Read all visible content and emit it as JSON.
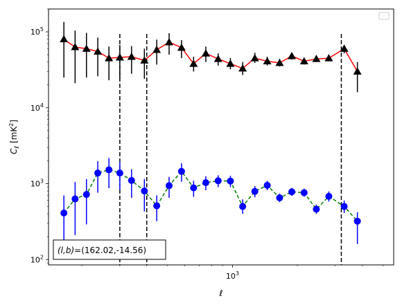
{
  "chart_data": {
    "type": "line",
    "title": "",
    "xlabel": "ℓ",
    "ylabel": "C_ℓ [mK²]",
    "xscale": "log",
    "yscale": "log",
    "xlim": [
      140,
      5600
    ],
    "ylim": [
      85,
      200000
    ],
    "x_tick_labels": [
      {
        "value": 1000,
        "label": "10^3"
      }
    ],
    "y_tick_labels": [
      {
        "value": 100,
        "label": "10^2"
      },
      {
        "value": 1000,
        "label": "10^3"
      },
      {
        "value": 10000,
        "label": "10^4"
      },
      {
        "value": 100000,
        "label": "10^5"
      }
    ],
    "grid": false,
    "legend": {
      "placement": "top-right",
      "entries": []
    },
    "annotation": "(l,b)=(162.02,-14.56)",
    "vlines": [
      300,
      400,
      3200
    ],
    "series": [
      {
        "color": "#ff0000",
        "marker": "triangle",
        "marker_color": "#000000",
        "linestyle": "solid",
        "points": [
          {
            "x": 165,
            "y": 80000,
            "ylo": 25000,
            "yhi": 135000
          },
          {
            "x": 186,
            "y": 63000,
            "ylo": 21000,
            "yhi": 104000
          },
          {
            "x": 210,
            "y": 60000,
            "ylo": 25000,
            "yhi": 97000
          },
          {
            "x": 237,
            "y": 55000,
            "ylo": 26000,
            "yhi": 84000
          },
          {
            "x": 267,
            "y": 45000,
            "ylo": 23000,
            "yhi": 64000
          },
          {
            "x": 300,
            "y": 46000,
            "ylo": 24000,
            "yhi": 67000
          },
          {
            "x": 340,
            "y": 47000,
            "ylo": 28000,
            "yhi": 65000
          },
          {
            "x": 390,
            "y": 42000,
            "ylo": 24000,
            "yhi": 60000
          },
          {
            "x": 445,
            "y": 58000,
            "ylo": 37000,
            "yhi": 79000
          },
          {
            "x": 508,
            "y": 73000,
            "ylo": 50000,
            "yhi": 96000
          },
          {
            "x": 580,
            "y": 62000,
            "ylo": 45000,
            "yhi": 78000
          },
          {
            "x": 660,
            "y": 38000,
            "ylo": 30000,
            "yhi": 47000
          },
          {
            "x": 752,
            "y": 52000,
            "ylo": 40000,
            "yhi": 64000
          },
          {
            "x": 858,
            "y": 44000,
            "ylo": 36000,
            "yhi": 52000
          },
          {
            "x": 978,
            "y": 38000,
            "ylo": 32000,
            "yhi": 45000
          },
          {
            "x": 1115,
            "y": 33000,
            "ylo": 27000,
            "yhi": 40000
          },
          {
            "x": 1270,
            "y": 45000,
            "ylo": 39000,
            "yhi": 53000
          },
          {
            "x": 1450,
            "y": 41000,
            "ylo": 36000,
            "yhi": 47000
          },
          {
            "x": 1655,
            "y": 39000,
            "ylo": 35000,
            "yhi": 44000
          },
          {
            "x": 1885,
            "y": 48000,
            "ylo": 43000,
            "yhi": 53000
          },
          {
            "x": 2150,
            "y": 41000,
            "ylo": 37000,
            "yhi": 45000
          },
          {
            "x": 2450,
            "y": 44000,
            "ylo": 40000,
            "yhi": 48000
          },
          {
            "x": 2800,
            "y": 45000,
            "ylo": 41000,
            "yhi": 50000
          },
          {
            "x": 3300,
            "y": 60000,
            "ylo": 52000,
            "yhi": 67000
          },
          {
            "x": 3800,
            "y": 30000,
            "ylo": 16000,
            "yhi": 40000
          }
        ]
      },
      {
        "color": "#008000",
        "marker": "circle",
        "marker_color": "#0000ff",
        "linestyle": "dashed",
        "points": [
          {
            "x": 165,
            "y": 410,
            "ylo": 160,
            "yhi": 700
          },
          {
            "x": 186,
            "y": 630,
            "ylo": 210,
            "yhi": 1050
          },
          {
            "x": 210,
            "y": 720,
            "ylo": 290,
            "yhi": 1150
          },
          {
            "x": 237,
            "y": 1380,
            "ylo": 760,
            "yhi": 1980
          },
          {
            "x": 267,
            "y": 1520,
            "ylo": 870,
            "yhi": 2180
          },
          {
            "x": 300,
            "y": 1380,
            "ylo": 820,
            "yhi": 1950
          },
          {
            "x": 340,
            "y": 1100,
            "ylo": 650,
            "yhi": 1550
          },
          {
            "x": 390,
            "y": 800,
            "ylo": 430,
            "yhi": 1150
          },
          {
            "x": 445,
            "y": 510,
            "ylo": 320,
            "yhi": 700
          },
          {
            "x": 508,
            "y": 940,
            "ylo": 650,
            "yhi": 1230
          },
          {
            "x": 580,
            "y": 1450,
            "ylo": 1060,
            "yhi": 1850
          },
          {
            "x": 660,
            "y": 880,
            "ylo": 670,
            "yhi": 1090
          },
          {
            "x": 752,
            "y": 1030,
            "ylo": 820,
            "yhi": 1250
          },
          {
            "x": 858,
            "y": 1090,
            "ylo": 900,
            "yhi": 1290
          },
          {
            "x": 978,
            "y": 1080,
            "ylo": 900,
            "yhi": 1270
          },
          {
            "x": 1115,
            "y": 500,
            "ylo": 400,
            "yhi": 620
          },
          {
            "x": 1270,
            "y": 790,
            "ylo": 660,
            "yhi": 930
          },
          {
            "x": 1450,
            "y": 950,
            "ylo": 820,
            "yhi": 1090
          },
          {
            "x": 1655,
            "y": 650,
            "ylo": 570,
            "yhi": 740
          },
          {
            "x": 1885,
            "y": 780,
            "ylo": 690,
            "yhi": 880
          },
          {
            "x": 2150,
            "y": 760,
            "ylo": 670,
            "yhi": 860
          },
          {
            "x": 2450,
            "y": 460,
            "ylo": 400,
            "yhi": 530
          },
          {
            "x": 2800,
            "y": 680,
            "ylo": 580,
            "yhi": 790
          },
          {
            "x": 3300,
            "y": 500,
            "ylo": 410,
            "yhi": 600
          },
          {
            "x": 3800,
            "y": 320,
            "ylo": 160,
            "yhi": 420
          }
        ]
      }
    ]
  }
}
